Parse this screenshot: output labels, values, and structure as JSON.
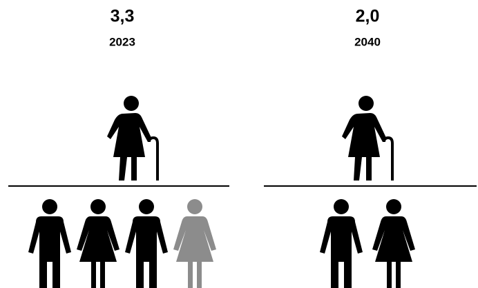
{
  "chart_data": {
    "type": "pictogram",
    "categories": [
      "2023",
      "2040"
    ],
    "values": [
      3.3,
      2.0
    ],
    "value_labels": [
      "3,3",
      "2,0"
    ],
    "color": "#000000",
    "partial_color": "#8c8c8c"
  }
}
